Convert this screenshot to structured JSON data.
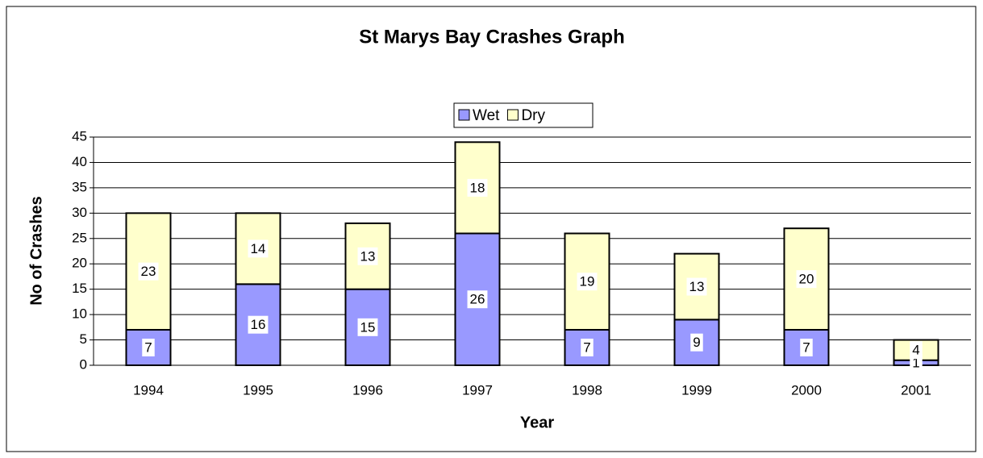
{
  "chart_data": {
    "type": "bar",
    "stacked": true,
    "title": "St Marys Bay Crashes Graph",
    "x_label": "Year",
    "y_label": "No of Crashes",
    "categories": [
      "1994",
      "1995",
      "1996",
      "1997",
      "1998",
      "1999",
      "2000",
      "2001"
    ],
    "series": [
      {
        "name": "Wet",
        "color": "#9999ff",
        "values": [
          7,
          16,
          15,
          26,
          7,
          9,
          7,
          1
        ]
      },
      {
        "name": "Dry",
        "color": "#ffffcc",
        "values": [
          23,
          14,
          13,
          18,
          19,
          13,
          20,
          4
        ]
      }
    ],
    "ylim": [
      0,
      45
    ],
    "yticks": [
      0,
      5,
      10,
      15,
      20,
      25,
      30,
      35,
      40,
      45
    ],
    "grid": true,
    "legend": "top"
  }
}
